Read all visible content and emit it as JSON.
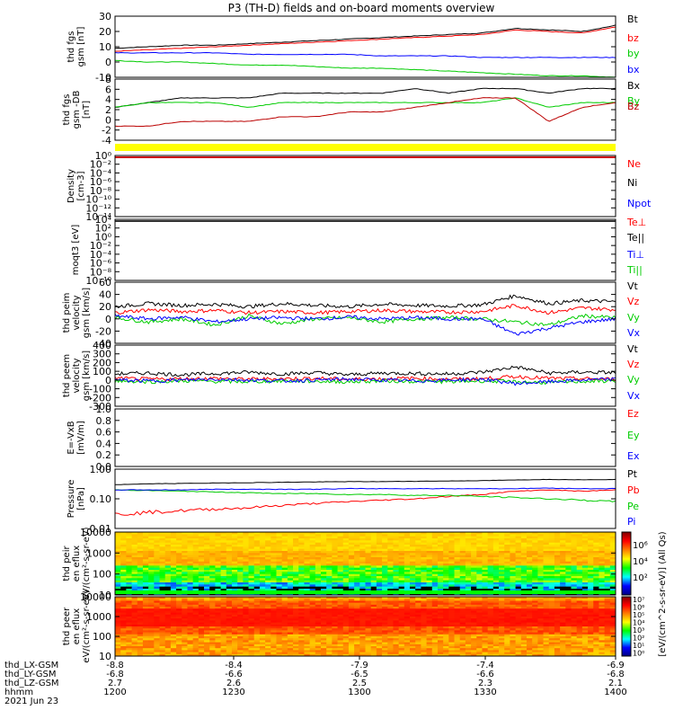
{
  "title": "P3 (TH-D) fields and on-board moments overview",
  "chart_data": [
    {
      "type": "line",
      "ylabel": "thd fgs gsm [nT]",
      "ylim": [
        -10,
        30
      ],
      "yticks": [
        "30",
        "20",
        "10",
        "0",
        "-10"
      ],
      "series": [
        {
          "name": "Bt",
          "color": "#000000",
          "values": [
            9,
            10,
            11,
            11,
            12,
            13,
            14,
            15,
            16,
            17,
            18,
            19,
            22,
            21,
            20,
            24
          ]
        },
        {
          "name": "bz",
          "color": "#ff0000",
          "values": [
            7,
            8,
            9,
            10,
            11,
            12,
            13,
            14,
            15,
            16,
            17,
            18,
            21,
            20,
            19,
            23
          ]
        },
        {
          "name": "by",
          "color": "#00cc00",
          "values": [
            1,
            0,
            0,
            -1,
            -2,
            -2,
            -3,
            -4,
            -4,
            -5,
            -6,
            -7,
            -8,
            -9,
            -9,
            -10
          ]
        },
        {
          "name": "bx",
          "color": "#0000ff",
          "values": [
            6,
            6,
            6,
            6,
            5,
            5,
            5,
            5,
            4,
            4,
            4,
            3,
            3,
            3,
            3,
            3
          ]
        }
      ]
    },
    {
      "type": "line",
      "ylabel": "thd fgs gsm -DB [nT]",
      "ylim": [
        -5,
        8
      ],
      "yticks": [
        "8",
        "6",
        "4",
        "2",
        "0",
        "-2",
        "-4"
      ],
      "series": [
        {
          "name": "Bx",
          "color": "#000000",
          "values": [
            2,
            3,
            4,
            4,
            4,
            5,
            5,
            5,
            5,
            6,
            5,
            6,
            6,
            5,
            6,
            6
          ]
        },
        {
          "name": "By",
          "color": "#00cc00",
          "values": [
            2,
            3,
            3,
            3,
            2,
            3,
            3,
            3,
            3,
            3,
            3,
            3,
            4,
            2,
            3,
            3
          ]
        },
        {
          "name": "Bz",
          "color": "#bb0000",
          "values": [
            -2,
            -2,
            -1,
            -1,
            -1,
            0,
            0,
            1,
            1,
            2,
            3,
            4,
            4,
            -1,
            2,
            3
          ]
        }
      ]
    },
    {
      "type": "line",
      "ylabel": "Density [cm-3]",
      "yticks": [
        "10⁰",
        "10⁻²",
        "10⁻⁴",
        "10⁻⁶",
        "10⁻⁸",
        "10⁻¹⁰",
        "10⁻¹²",
        "10⁻¹⁴"
      ],
      "series": [
        {
          "name": "Ne",
          "color": "#ff0000"
        },
        {
          "name": "Ni",
          "color": "#000000"
        },
        {
          "name": "Npot",
          "color": "#0000ff"
        }
      ]
    },
    {
      "type": "line",
      "ylabel": "moqt3 [eV]",
      "yticks": [
        "10⁴",
        "10²",
        "10⁰",
        "10⁻²",
        "10⁻⁴",
        "10⁻⁶",
        "10⁻⁸",
        "10⁻¹⁰"
      ],
      "series": [
        {
          "name": "Te⊥",
          "color": "#ff0000"
        },
        {
          "name": "Te||",
          "color": "#000000"
        },
        {
          "name": "Ti⊥",
          "color": "#0000ff"
        },
        {
          "name": "Ti||",
          "color": "#00cc00"
        }
      ]
    },
    {
      "type": "line",
      "ylabel": "thd peim velocity gsm [km/s]",
      "ylim": [
        -40,
        60
      ],
      "yticks": [
        "60",
        "40",
        "20",
        "0",
        "-20",
        "-40"
      ],
      "series": [
        {
          "name": "Vt",
          "color": "#000000",
          "values": [
            20,
            25,
            22,
            24,
            20,
            25,
            22,
            20,
            24,
            22,
            21,
            23,
            38,
            25,
            30,
            28
          ]
        },
        {
          "name": "Vz",
          "color": "#ff0000",
          "values": [
            10,
            15,
            12,
            14,
            10,
            12,
            10,
            12,
            14,
            12,
            11,
            12,
            22,
            10,
            18,
            15
          ]
        },
        {
          "name": "Vy",
          "color": "#00cc00",
          "values": [
            2,
            -5,
            0,
            -10,
            5,
            -8,
            0,
            2,
            -5,
            0,
            2,
            0,
            -5,
            -10,
            5,
            2
          ]
        },
        {
          "name": "Vx",
          "color": "#0000ff",
          "values": [
            5,
            0,
            3,
            -5,
            0,
            2,
            0,
            3,
            0,
            2,
            0,
            0,
            -25,
            -15,
            -5,
            0
          ]
        }
      ]
    },
    {
      "type": "line",
      "ylabel": "thd peem velocity gsm [km/s]",
      "ylim": [
        -300,
        400
      ],
      "yticks": [
        "400",
        "300",
        "200",
        "100",
        "0",
        "-100",
        "-200",
        "-300"
      ],
      "series": [
        {
          "name": "Vt",
          "color": "#000000",
          "values": [
            70,
            80,
            60,
            75,
            90,
            70,
            85,
            60,
            80,
            75,
            70,
            90,
            150,
            80,
            90,
            85
          ]
        },
        {
          "name": "Vz",
          "color": "#ff0000",
          "values": [
            20,
            10,
            15,
            20,
            10,
            15,
            20,
            10,
            15,
            20,
            10,
            15,
            40,
            20,
            15,
            10
          ]
        },
        {
          "name": "Vy",
          "color": "#00cc00",
          "values": [
            -10,
            -20,
            -10,
            -15,
            -20,
            -10,
            -15,
            -20,
            -10,
            -15,
            -20,
            -10,
            -20,
            -30,
            -15,
            -10
          ]
        },
        {
          "name": "Vx",
          "color": "#0000ff",
          "values": [
            0,
            -10,
            0,
            10,
            0,
            -10,
            0,
            10,
            0,
            -10,
            0,
            10,
            -40,
            -20,
            0,
            10
          ]
        }
      ]
    },
    {
      "type": "line",
      "ylabel": "E=-VxB [mV/m]",
      "ylim": [
        0,
        1
      ],
      "yticks": [
        "1.0",
        "0.8",
        "0.6",
        "0.4",
        "0.2",
        "0.0"
      ],
      "series": [
        {
          "name": "Ez",
          "color": "#ff0000"
        },
        {
          "name": "Ey",
          "color": "#00cc00"
        },
        {
          "name": "Ex",
          "color": "#0000ff"
        }
      ]
    },
    {
      "type": "line",
      "ylabel": "Pressure [nPa]",
      "ylim": [
        0.01,
        1
      ],
      "yscale": "log",
      "yticks": [
        "1.00",
        "0.10",
        "0.01"
      ],
      "series": [
        {
          "name": "Pt",
          "color": "#000000",
          "values": [
            0.3,
            0.32,
            0.33,
            0.34,
            0.35,
            0.36,
            0.37,
            0.38,
            0.38,
            0.39,
            0.4,
            0.41,
            0.43,
            0.45,
            0.44,
            0.45
          ]
        },
        {
          "name": "Pb",
          "color": "#ff0000",
          "values": [
            0.03,
            0.035,
            0.04,
            0.045,
            0.05,
            0.06,
            0.07,
            0.08,
            0.09,
            0.1,
            0.12,
            0.14,
            0.18,
            0.2,
            0.18,
            0.2
          ]
        },
        {
          "name": "Pe",
          "color": "#00cc00",
          "values": [
            0.2,
            0.19,
            0.18,
            0.17,
            0.16,
            0.15,
            0.15,
            0.14,
            0.14,
            0.13,
            0.13,
            0.12,
            0.11,
            0.1,
            0.09,
            0.08
          ]
        },
        {
          "name": "Pi",
          "color": "#0000ff",
          "values": [
            0.2,
            0.2,
            0.2,
            0.21,
            0.21,
            0.21,
            0.21,
            0.22,
            0.22,
            0.22,
            0.22,
            0.22,
            0.22,
            0.23,
            0.22,
            0.22
          ]
        }
      ]
    },
    {
      "type": "heatmap",
      "ylabel": "thd peir en eflux eV/(cm²-s-sr-eV)",
      "yticks": [
        "10000",
        "1000",
        "100",
        "10"
      ]
    },
    {
      "type": "heatmap",
      "ylabel": "thd peer en eflux eV/(cm²-s-sr-eV)",
      "yticks": [
        "10000",
        "1000",
        "100",
        "10"
      ]
    }
  ],
  "colorbar": {
    "label": "[eV/(cm^2-s-sr-eV)] (All Qs)",
    "ticks_top": [
      "10⁶",
      "10⁴",
      "10²"
    ],
    "ticks_bottom": [
      "10⁷",
      "10⁶",
      "10⁵",
      "10⁴",
      "10³",
      "10²",
      "10¹",
      "10⁰"
    ]
  },
  "xaxis": {
    "row_labels": [
      "thd_LX-GSM",
      "thd_LY-GSM",
      "thd_LZ-GSM",
      "hhmm",
      "2021 Jun 23"
    ],
    "tick_rows": [
      [
        "-8.8",
        "-8.4",
        "-7.9",
        "-7.4",
        "-6.9"
      ],
      [
        "-6.8",
        "-6.6",
        "-6.5",
        "-6.6",
        "-6.8"
      ],
      [
        "2.7",
        "2.6",
        "2.5",
        "2.3",
        "2.1"
      ],
      [
        "1200",
        "1230",
        "1300",
        "1330",
        "1400"
      ]
    ]
  }
}
